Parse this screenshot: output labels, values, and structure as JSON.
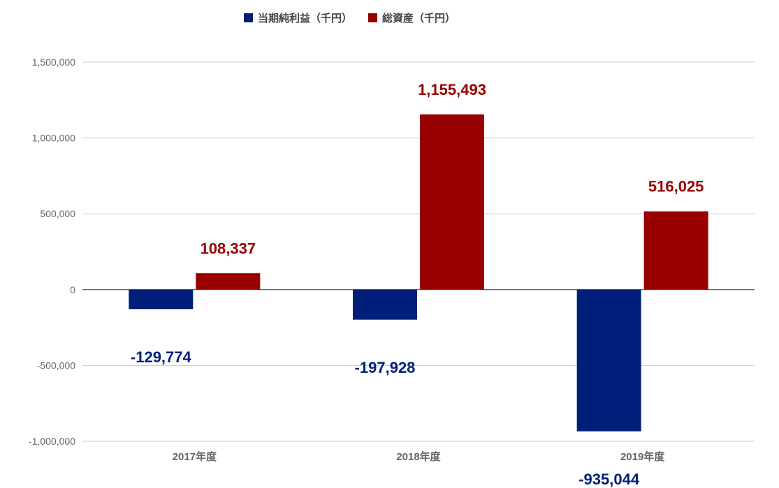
{
  "chart_data": {
    "type": "bar",
    "title": "",
    "xlabel": "",
    "ylabel": "",
    "categories": [
      "2017年度",
      "2018年度",
      "2019年度"
    ],
    "series": [
      {
        "name": "当期純利益（千円）",
        "color": "#001f7a",
        "values": [
          -129774,
          -197928,
          -935044
        ]
      },
      {
        "name": "総資産（千円）",
        "color": "#990000",
        "values": [
          108337,
          1155493,
          516025
        ]
      }
    ],
    "data_labels": [
      [
        "-129,774",
        "-197,928",
        "-935,044"
      ],
      [
        "108,337",
        "1,155,493",
        "516,025"
      ]
    ],
    "ylim": [
      -1000000,
      1500000
    ],
    "yticks": [
      1500000,
      1000000,
      500000,
      0,
      -500000,
      -1000000
    ],
    "ytick_labels": [
      "1,500,000",
      "1,000,000",
      "500,000",
      "0",
      "-500,000",
      "-1,000,000"
    ],
    "grid": true,
    "legend_position": "top-center"
  }
}
